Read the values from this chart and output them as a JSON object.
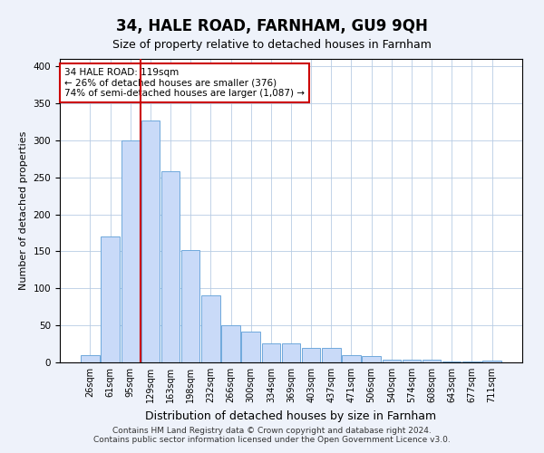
{
  "title": "34, HALE ROAD, FARNHAM, GU9 9QH",
  "subtitle": "Size of property relative to detached houses in Farnham",
  "xlabel": "Distribution of detached houses by size in Farnham",
  "ylabel": "Number of detached properties",
  "categories": [
    "26sqm",
    "61sqm",
    "95sqm",
    "129sqm",
    "163sqm",
    "198sqm",
    "232sqm",
    "266sqm",
    "300sqm",
    "334sqm",
    "369sqm",
    "403sqm",
    "437sqm",
    "471sqm",
    "506sqm",
    "540sqm",
    "574sqm",
    "608sqm",
    "643sqm",
    "677sqm",
    "711sqm"
  ],
  "values": [
    10,
    170,
    300,
    327,
    258,
    152,
    90,
    50,
    42,
    26,
    26,
    20,
    20,
    10,
    9,
    4,
    4,
    4,
    1,
    1,
    2
  ],
  "bar_color": "#c9daf8",
  "bar_edge_color": "#6fa8dc",
  "vline_x_index": 3,
  "vline_color": "#cc0000",
  "annotation_text": "34 HALE ROAD: 119sqm\n← 26% of detached houses are smaller (376)\n74% of semi-detached houses are larger (1,087) →",
  "annotation_box_color": "white",
  "annotation_box_edge_color": "#cc0000",
  "ylim": [
    0,
    410
  ],
  "yticks": [
    0,
    50,
    100,
    150,
    200,
    250,
    300,
    350,
    400
  ],
  "footer": "Contains HM Land Registry data © Crown copyright and database right 2024.\nContains public sector information licensed under the Open Government Licence v3.0.",
  "background_color": "#eef2fa",
  "plot_bg_color": "white",
  "grid_color": "#b8cce4",
  "title_fontsize": 12,
  "subtitle_fontsize": 9,
  "xlabel_fontsize": 9,
  "ylabel_fontsize": 8,
  "tick_fontsize": 7,
  "footer_fontsize": 6.5
}
